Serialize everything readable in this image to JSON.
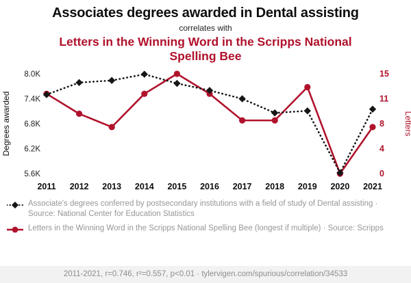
{
  "header": {
    "title": "Associates degrees awarded in Dental assisting",
    "connector": "correlates with",
    "subtitle": "Letters in the Winning Word in the Scripps National Spelling Bee"
  },
  "colors": {
    "series_black": "#161616",
    "series_red": "#b0122c",
    "legend_gray": "#969696"
  },
  "chart_data": {
    "type": "line",
    "x": [
      2011,
      2012,
      2013,
      2014,
      2015,
      2016,
      2017,
      2018,
      2019,
      2020,
      2021
    ],
    "series": [
      {
        "name": "Associate's degrees awarded in Dental assisting",
        "axis": "left",
        "color": "#161616",
        "line_style": "dotted",
        "marker": "diamond",
        "values": [
          7500,
          7790,
          7840,
          7990,
          7770,
          7600,
          7400,
          7060,
          7110,
          5620,
          7150
        ]
      },
      {
        "name": "Letters in the Winning Word in the Scripps National Spelling Bee (longest if multiple)",
        "axis": "right",
        "color": "#b0122c",
        "line_style": "solid",
        "marker": "circle",
        "values": [
          12,
          9,
          7,
          12,
          15,
          12,
          8,
          8,
          13,
          0,
          7
        ]
      }
    ],
    "left_axis": {
      "label": "Degrees awarded",
      "min": 5600,
      "max": 8000,
      "tick_values": [
        5600,
        6200,
        6800,
        7400,
        8000
      ],
      "tick_labels": [
        "5.6K",
        "6.2K",
        "6.8K",
        "7.4K",
        "8.0K"
      ]
    },
    "right_axis": {
      "label": "Letters",
      "min": 0,
      "max": 15,
      "tick_labels": [
        "0",
        "4",
        "8",
        "11",
        "15"
      ]
    },
    "grid": false,
    "legend_position": "below"
  },
  "legend": [
    {
      "text": "Associate's degrees conferred by postsecondary institutions with a field of study of Dental assisting · Source: National Center for Education Statistics"
    },
    {
      "text": "Letters in the Winning Word in the Scripps National Spelling Bee (longest if multiple) · Source: Scripps"
    }
  ],
  "footer": {
    "text": "2011-2021, r=0.746, r²=0.557, p<0.01 · tylervigen.com/spurious/correlation/34533"
  }
}
